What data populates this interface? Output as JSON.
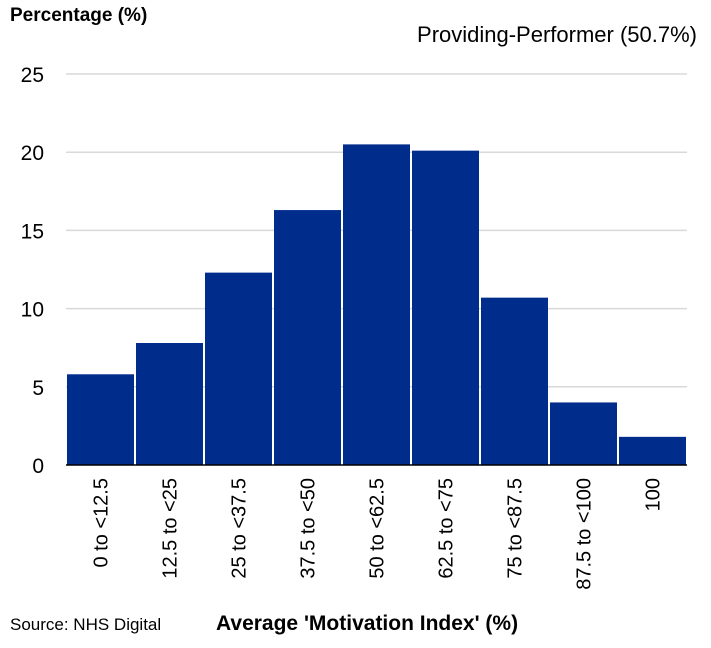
{
  "chart_data": {
    "type": "bar",
    "title": "",
    "subtitle": "Providing-Performer (50.7%)",
    "ylabel": "Percentage (%)",
    "xlabel": "Average 'Motivation Index' (%)",
    "source": "Source: NHS Digital",
    "categories": [
      "0 to <12.5",
      "12.5 to <25",
      "25 to <37.5",
      "37.5 to <50",
      "50 to <62.5",
      "62.5 to <75",
      "75 to <87.5",
      "87.5 to <100",
      "100"
    ],
    "values": [
      5.8,
      7.8,
      12.3,
      16.3,
      20.5,
      20.1,
      10.7,
      4.0,
      1.8
    ],
    "ylim": [
      0,
      25
    ],
    "yticks": [
      0,
      5,
      10,
      15,
      20,
      25
    ],
    "grid": true,
    "bar_color": "#002c8c",
    "grid_color": "#d9d9d9"
  }
}
